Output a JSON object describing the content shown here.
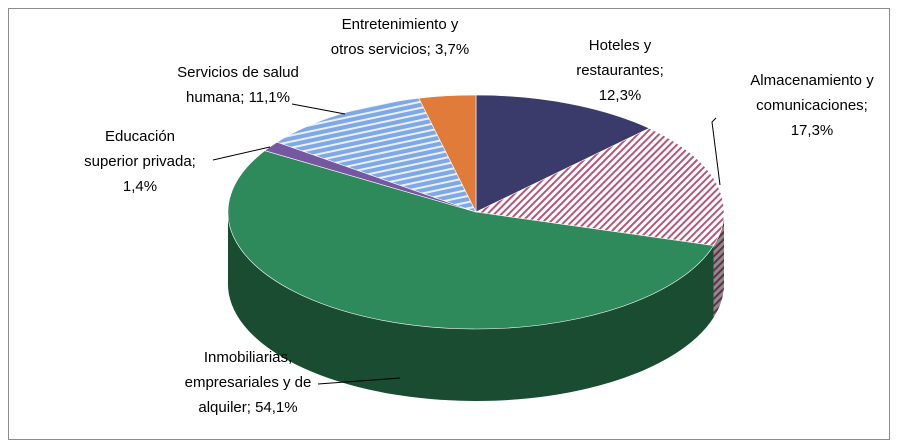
{
  "chart_data": {
    "type": "pie3d",
    "categories": [
      "Hoteles y restaurantes;",
      "Almacenamiento y comunicaciones;",
      "Inmobiliarias, empresariales y de alquiler;",
      "Educación superior privada;",
      "Servicios de salud humana;",
      "Entretenimiento y otros servicios;"
    ],
    "values": [
      12.3,
      17.3,
      54.1,
      1.4,
      11.1,
      3.7
    ],
    "value_labels": [
      "12,3%",
      "17,3%",
      "54,1%",
      "1,4%",
      "11,1%",
      "3,7%"
    ],
    "colors": [
      "#3b3b6b",
      "#b5577a",
      "#2e8a5a",
      "#7658a0",
      "#7fa8e6",
      "#e07b3a"
    ],
    "fill_patterns": [
      null,
      "diagonal",
      null,
      null,
      "horizontal",
      null
    ]
  }
}
